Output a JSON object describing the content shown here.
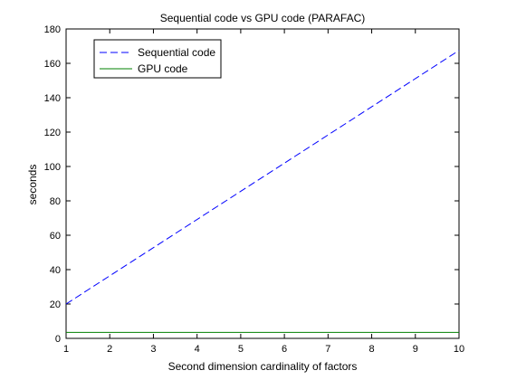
{
  "chart_data": {
    "type": "line",
    "title": "Sequential code vs GPU code (PARAFAC)",
    "xlabel": "Second dimension cardinality of factors",
    "ylabel": "seconds",
    "xlim": [
      1,
      10
    ],
    "ylim": [
      0,
      180
    ],
    "xticks": [
      1,
      2,
      3,
      4,
      5,
      6,
      7,
      8,
      9,
      10
    ],
    "yticks": [
      0,
      20,
      40,
      60,
      80,
      100,
      120,
      140,
      160,
      180
    ],
    "grid": false,
    "legend_position": "top-left",
    "series": [
      {
        "name": "Sequential code",
        "color": "#0000ff",
        "line_style": "dashed",
        "x": [
          1,
          10
        ],
        "y": [
          20,
          167.5
        ]
      },
      {
        "name": "GPU code",
        "color": "#008000",
        "line_style": "solid",
        "x": [
          1,
          10
        ],
        "y": [
          3.5,
          3.5
        ]
      }
    ]
  }
}
